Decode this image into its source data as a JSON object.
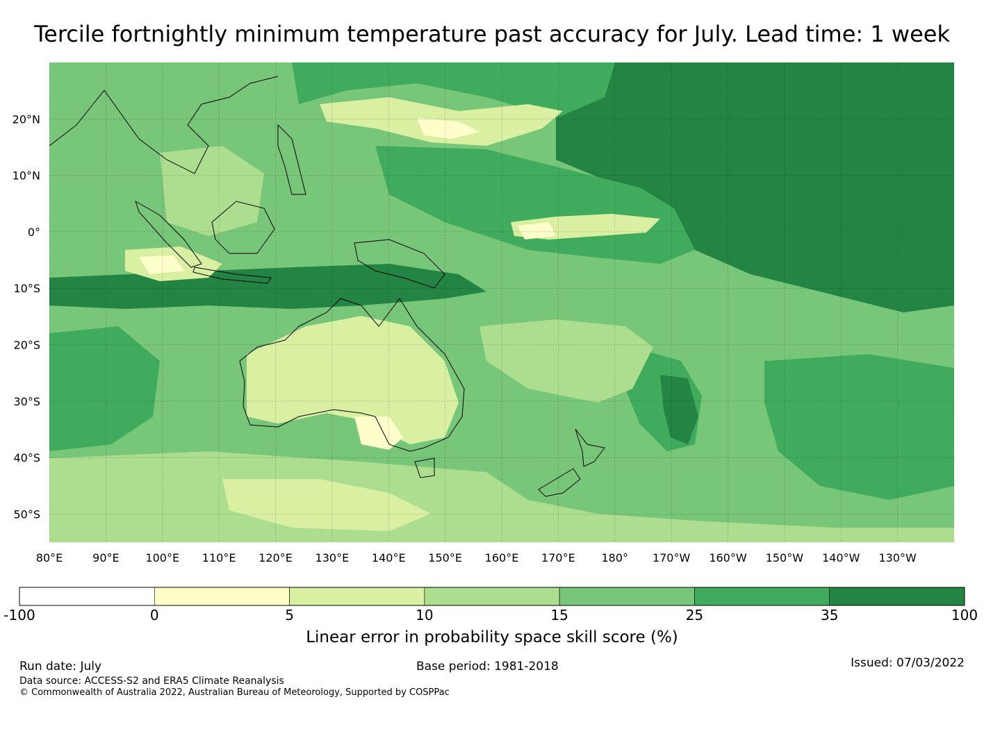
{
  "title": "Tercile fortnightly minimum temperature past accuracy for July. Lead time: 1 week",
  "map": {
    "lat_labels": [
      "20°N",
      "10°N",
      "0°",
      "10°S",
      "20°S",
      "30°S",
      "40°S",
      "50°S"
    ],
    "lon_labels": [
      "80°E",
      "90°E",
      "100°E",
      "110°E",
      "120°E",
      "130°E",
      "140°E",
      "150°E",
      "160°E",
      "170°E",
      "180°",
      "170°W",
      "160°W",
      "150°W",
      "140°W",
      "130°W"
    ],
    "lon_range": [
      80,
      240
    ],
    "lat_range": [
      -55,
      30
    ]
  },
  "colorbar": {
    "label": "Linear error in probability space skill score (%)",
    "ticks": [
      "-100",
      "0",
      "5",
      "10",
      "15",
      "25",
      "35",
      "100"
    ],
    "colors": [
      "#ffffff",
      "#ffffcc",
      "#d9f0a3",
      "#addd8e",
      "#78c679",
      "#41ab5d",
      "#238443"
    ]
  },
  "footer": {
    "run_date": "Run date: July",
    "base_period": "Base period: 1981-2018",
    "issued": "Issued: 07/03/2022",
    "data_source": "Data source: ACCESS-S2 and ERA5 Climate Reanalysis",
    "copyright": "© Commonwealth of Australia 2022, Australian Bureau of Meteorology, Supported by COSPPac"
  }
}
